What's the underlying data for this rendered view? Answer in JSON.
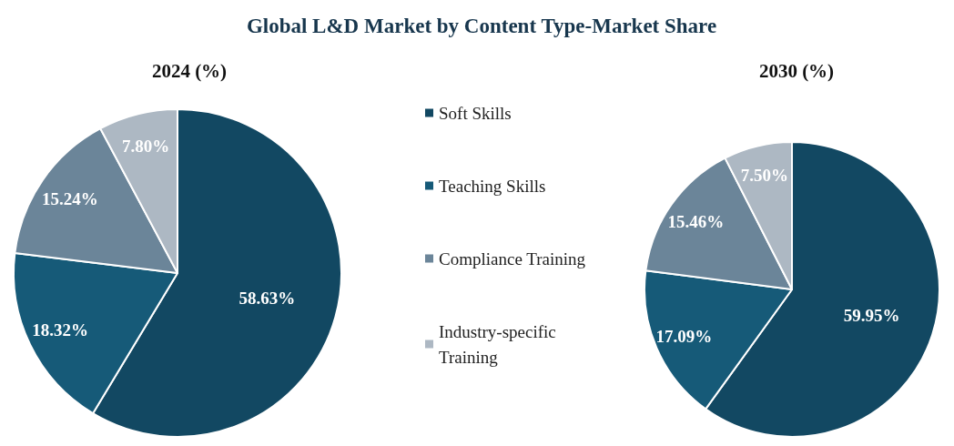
{
  "chart_data": [
    {
      "type": "pie",
      "title": "Global L&D Market by Content Type-Market Share",
      "subtitle": "2024 (%)",
      "categories": [
        "Soft Skills",
        "Teaching Skills",
        "Compliance Training",
        "Industry-specific Training"
      ],
      "values": [
        58.63,
        18.32,
        15.24,
        7.8
      ],
      "value_labels": [
        "58.63%",
        "18.32%",
        "15.24%",
        "7.80%"
      ],
      "colors": [
        "#124862",
        "#165a78",
        "#6b8599",
        "#adb8c3"
      ],
      "legend": "right"
    },
    {
      "type": "pie",
      "subtitle": "2030 (%)",
      "categories": [
        null,
        null,
        null,
        null
      ],
      "values": [
        59.95,
        17.09,
        15.46,
        7.5
      ],
      "value_labels": [
        "59.95%",
        "17.09%",
        "15.46%",
        "7.50%"
      ],
      "colors": [
        "#124862",
        "#165a78",
        "#6b8599",
        "#adb8c3"
      ]
    }
  ]
}
